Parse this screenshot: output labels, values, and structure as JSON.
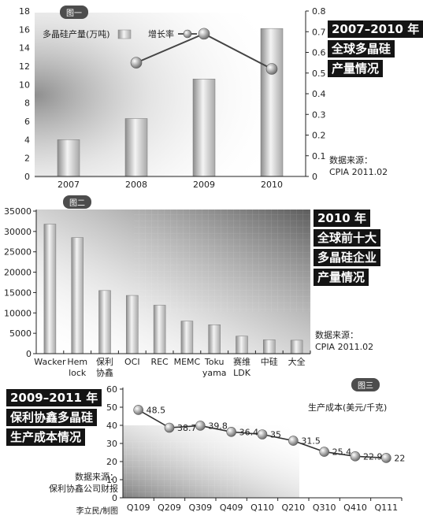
{
  "charts": [
    {
      "badge": "图一",
      "title_lines": [
        "2007–2010 年",
        "全球多晶硅",
        "产量情况"
      ],
      "source_lines": [
        "数据来源：",
        "CPIA 2011.02"
      ],
      "legend": {
        "bar": "多晶硅产量(万吨)",
        "line": "增长率"
      },
      "chart_data": {
        "type": "bar",
        "categories": [
          "2007",
          "2008",
          "2009",
          "2010"
        ],
        "series": [
          {
            "name": "多晶硅产量(万吨)",
            "type": "bar",
            "axis": "left",
            "values": [
              4,
              6.3,
              10.6,
              16.1
            ]
          },
          {
            "name": "增长率",
            "type": "line",
            "axis": "right",
            "values": [
              null,
              0.55,
              0.69,
              0.52
            ]
          }
        ],
        "y_left": {
          "ylim": [
            0,
            18
          ],
          "ticks": [
            0,
            2,
            4,
            6,
            8,
            10,
            12,
            14,
            16,
            18
          ]
        },
        "y_right": {
          "ylim": [
            0,
            0.8
          ],
          "ticks": [
            "0",
            "0.1",
            "0.2",
            "0.3",
            "0.4",
            "0.5",
            "0.6",
            "0.7",
            "0.8"
          ]
        },
        "legend_position": "top-left",
        "grid": false
      }
    },
    {
      "badge": "图二",
      "title_lines": [
        "2010 年",
        "全球前十大",
        "多晶硅企业",
        "产量情况"
      ],
      "source_lines": [
        "数据来源：",
        "CPIA 2011.02"
      ],
      "chart_data": {
        "type": "bar",
        "categories": [
          [
            "Wacker"
          ],
          [
            "Hem",
            "lock"
          ],
          [
            "保利",
            "协鑫"
          ],
          [
            "OCI"
          ],
          [
            "REC"
          ],
          [
            "MEMC"
          ],
          [
            "Toku",
            "yama"
          ],
          [
            "赛维",
            "LDK"
          ],
          [
            "中硅"
          ],
          [
            "大全"
          ]
        ],
        "values": [
          31800,
          28500,
          15500,
          14300,
          11900,
          8000,
          7100,
          4300,
          3400,
          3300
        ],
        "ylim": [
          0,
          35000
        ],
        "ticks": [
          "0",
          "5000",
          "10000",
          "15000",
          "20000",
          "25000",
          "30000",
          "35000"
        ],
        "grid": false
      }
    },
    {
      "badge": "图三",
      "title_lines": [
        "2009–2011 年",
        "保利协鑫多晶硅",
        "生产成本情况"
      ],
      "source_lines": [
        "数据来源：",
        "保利协鑫公司财报"
      ],
      "credit": "李立民/制图",
      "chart_data": {
        "type": "line",
        "categories": [
          "Q109",
          "Q209",
          "Q309",
          "Q409",
          "Q110",
          "Q210",
          "Q310",
          "Q410",
          "Q111"
        ],
        "series": [
          {
            "name": "生产成本(美元/千克)",
            "values": [
              48.5,
              38.7,
              39.8,
              36.4,
              35,
              31.5,
              25.4,
              22.9,
              22
            ]
          }
        ],
        "data_labels": [
          "48.5",
          "38.7",
          "39.8",
          "36.4",
          "35",
          "31.5",
          "25.4",
          "22.9",
          "22"
        ],
        "ylim": [
          0,
          60
        ],
        "ticks": [
          "0",
          "10",
          "20",
          "30",
          "40",
          "50",
          "60"
        ],
        "legend_position": "top-right",
        "grid": false
      }
    }
  ]
}
